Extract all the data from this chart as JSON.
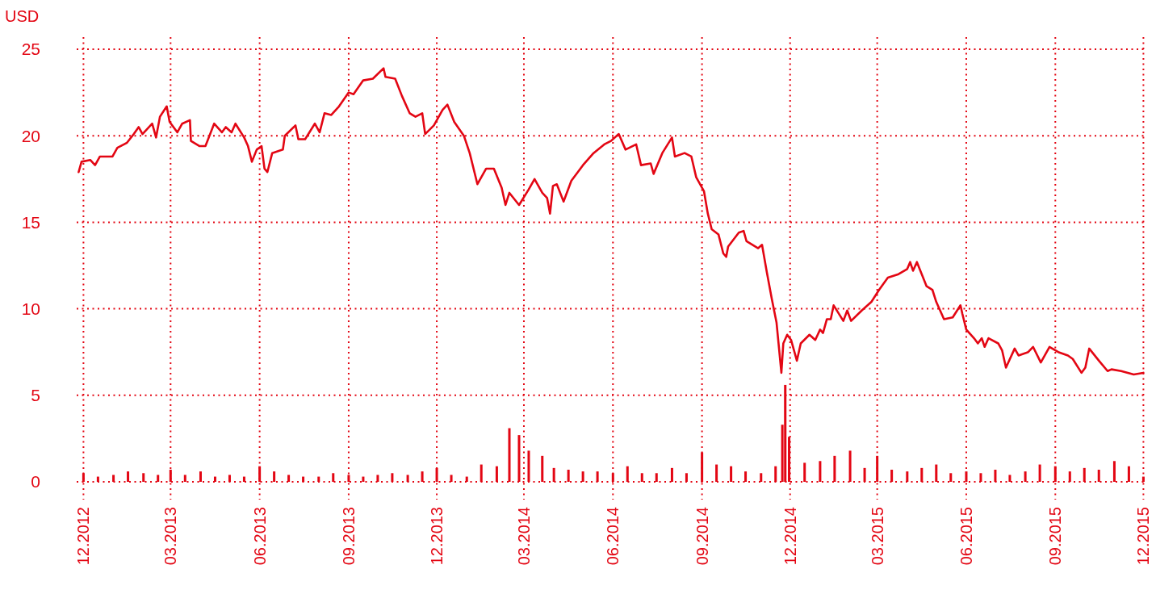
{
  "chart_data": {
    "type": "line",
    "ylabel": "USD",
    "xlim": [
      "2012-11-24",
      "2015-12-04"
    ],
    "ylim": [
      0,
      25.7
    ],
    "yticks": [
      0,
      5,
      10,
      15,
      20,
      25
    ],
    "xticks": [
      {
        "value": "2012-12",
        "label": "12.2012"
      },
      {
        "value": "2013-03",
        "label": "03.2013"
      },
      {
        "value": "2013-06",
        "label": "06.2013"
      },
      {
        "value": "2013-09",
        "label": "09.2013"
      },
      {
        "value": "2013-12",
        "label": "12.2013"
      },
      {
        "value": "2014-03",
        "label": "03.2014"
      },
      {
        "value": "2014-06",
        "label": "06.2014"
      },
      {
        "value": "2014-09",
        "label": "09.2014"
      },
      {
        "value": "2014-12",
        "label": "12.2014"
      },
      {
        "value": "2015-03",
        "label": "03.2015"
      },
      {
        "value": "2015-06",
        "label": "06.2015"
      },
      {
        "value": "2015-09",
        "label": "09.2015"
      },
      {
        "value": "2015-12",
        "label": "12.2015"
      }
    ],
    "grid": true,
    "series": [
      {
        "type": "bar",
        "color": "#e30613",
        "x": [
          "2012-12-01",
          "2012-12-16",
          "2013-01-01",
          "2013-01-16",
          "2013-02-01",
          "2013-02-16",
          "2013-03-01",
          "2013-03-16",
          "2013-04-01",
          "2013-04-16",
          "2013-05-01",
          "2013-05-16",
          "2013-06-01",
          "2013-06-16",
          "2013-07-01",
          "2013-07-16",
          "2013-08-01",
          "2013-08-16",
          "2013-09-01",
          "2013-09-16",
          "2013-10-01",
          "2013-10-16",
          "2013-11-01",
          "2013-11-16",
          "2013-12-01",
          "2013-12-16",
          "2014-01-01",
          "2014-01-16",
          "2014-02-01",
          "2014-02-14",
          "2014-02-24",
          "2014-03-06",
          "2014-03-20",
          "2014-04-01",
          "2014-04-16",
          "2014-05-01",
          "2014-05-16",
          "2014-06-01",
          "2014-06-16",
          "2014-07-01",
          "2014-07-16",
          "2014-08-01",
          "2014-08-16",
          "2014-09-01",
          "2014-09-16",
          "2014-10-01",
          "2014-10-16",
          "2014-11-01",
          "2014-11-16",
          "2014-11-23",
          "2014-11-26",
          "2014-11-30",
          "2014-12-16",
          "2015-01-01",
          "2015-01-16",
          "2015-02-01",
          "2015-02-16",
          "2015-03-01",
          "2015-03-16",
          "2015-04-01",
          "2015-04-16",
          "2015-05-01",
          "2015-05-16",
          "2015-06-01",
          "2015-06-16",
          "2015-07-01",
          "2015-07-16",
          "2015-08-01",
          "2015-08-16",
          "2015-09-01",
          "2015-09-16",
          "2015-10-01",
          "2015-10-16",
          "2015-11-01",
          "2015-11-16",
          "2015-12-01"
        ],
        "values": [
          0.5,
          0.3,
          0.4,
          0.6,
          0.5,
          0.4,
          0.7,
          0.4,
          0.6,
          0.3,
          0.4,
          0.3,
          0.9,
          0.6,
          0.4,
          0.3,
          0.3,
          0.5,
          0.4,
          0.3,
          0.4,
          0.5,
          0.4,
          0.6,
          0.8,
          0.4,
          0.3,
          1.0,
          0.9,
          3.1,
          2.7,
          1.8,
          1.5,
          0.8,
          0.7,
          0.6,
          0.6,
          0.5,
          0.9,
          0.5,
          0.5,
          0.8,
          0.5,
          1.7,
          1.0,
          0.9,
          0.6,
          0.5,
          0.9,
          3.3,
          5.6,
          2.6,
          1.1,
          1.2,
          1.5,
          1.8,
          0.8,
          1.5,
          0.7,
          0.6,
          0.8,
          1.0,
          0.5,
          0.6,
          0.5,
          0.7,
          0.4,
          0.6,
          1.0,
          0.9,
          0.6,
          0.8,
          0.7,
          1.2,
          0.9,
          0.3
        ]
      },
      {
        "color": "#e30613",
        "x": [
          "2012-11-26",
          "2012-11-29",
          "2012-12-08",
          "2012-12-13",
          "2012-12-18",
          "2012-12-31",
          "2013-01-05",
          "2013-01-15",
          "2013-01-22",
          "2013-01-27",
          "2013-01-31",
          "2013-02-10",
          "2013-02-14",
          "2013-02-18",
          "2013-02-25",
          "2013-02-28",
          "2013-03-08",
          "2013-03-13",
          "2013-03-21",
          "2013-03-22",
          "2013-03-31",
          "2013-04-06",
          "2013-04-15",
          "2013-04-23",
          "2013-04-27",
          "2013-05-03",
          "2013-05-07",
          "2013-05-16",
          "2013-05-20",
          "2013-05-24",
          "2013-05-29",
          "2013-06-03",
          "2013-06-06",
          "2013-06-09",
          "2013-06-14",
          "2013-06-25",
          "2013-06-27",
          "2013-07-08",
          "2013-07-11",
          "2013-07-18",
          "2013-07-28",
          "2013-08-02",
          "2013-08-07",
          "2013-08-14",
          "2013-08-22",
          "2013-09-01",
          "2013-09-06",
          "2013-09-16",
          "2013-09-26",
          "2013-10-07",
          "2013-10-09",
          "2013-10-19",
          "2013-10-26",
          "2013-11-03",
          "2013-11-09",
          "2013-11-16",
          "2013-11-19",
          "2013-11-28",
          "2013-12-07",
          "2013-12-12",
          "2013-12-19",
          "2013-12-29",
          "2014-01-04",
          "2014-01-12",
          "2014-01-21",
          "2014-01-29",
          "2014-02-06",
          "2014-02-10",
          "2014-02-14",
          "2014-02-24",
          "2014-03-06",
          "2014-03-12",
          "2014-03-20",
          "2014-03-25",
          "2014-03-28",
          "2014-03-31",
          "2014-04-04",
          "2014-04-11",
          "2014-04-19",
          "2014-05-01",
          "2014-05-12",
          "2014-05-23",
          "2014-05-30",
          "2014-06-07",
          "2014-06-14",
          "2014-06-25",
          "2014-06-30",
          "2014-07-10",
          "2014-07-13",
          "2014-07-22",
          "2014-08-01",
          "2014-08-04",
          "2014-08-14",
          "2014-08-21",
          "2014-08-26",
          "2014-09-03",
          "2014-09-07",
          "2014-09-11",
          "2014-09-18",
          "2014-09-23",
          "2014-09-26",
          "2014-09-28",
          "2014-10-09",
          "2014-10-14",
          "2014-10-17",
          "2014-10-29",
          "2014-11-02",
          "2014-11-07",
          "2014-11-12",
          "2014-11-17",
          "2014-11-22",
          "2014-11-24",
          "2014-11-28",
          "2014-12-02",
          "2014-12-08",
          "2014-12-12",
          "2014-12-21",
          "2014-12-27",
          "2015-01-01",
          "2015-01-04",
          "2015-01-08",
          "2015-01-12",
          "2015-01-15",
          "2015-01-25",
          "2015-01-29",
          "2015-02-02",
          "2015-02-13",
          "2015-02-23",
          "2015-03-03",
          "2015-03-12",
          "2015-03-23",
          "2015-04-01",
          "2015-04-04",
          "2015-04-07",
          "2015-04-11",
          "2015-04-16",
          "2015-04-21",
          "2015-04-27",
          "2015-05-01",
          "2015-05-05",
          "2015-05-09",
          "2015-05-18",
          "2015-05-26",
          "2015-05-28",
          "2015-06-01",
          "2015-06-09",
          "2015-06-13",
          "2015-06-17",
          "2015-06-20",
          "2015-06-24",
          "2015-07-04",
          "2015-07-08",
          "2015-07-12",
          "2015-07-21",
          "2015-07-25",
          "2015-08-04",
          "2015-08-09",
          "2015-08-17",
          "2015-08-26",
          "2015-09-04",
          "2015-09-14",
          "2015-09-19",
          "2015-09-28",
          "2015-10-02",
          "2015-10-06",
          "2015-10-16",
          "2015-10-25",
          "2015-10-29",
          "2015-11-08",
          "2015-11-21",
          "2015-12-01"
        ],
        "values": [
          17.9,
          18.5,
          18.6,
          18.3,
          18.8,
          18.8,
          19.3,
          19.6,
          20.1,
          20.5,
          20.1,
          20.7,
          19.9,
          21.1,
          21.7,
          20.8,
          20.2,
          20.7,
          20.9,
          19.7,
          19.4,
          19.4,
          20.7,
          20.2,
          20.5,
          20.2,
          20.7,
          19.9,
          19.4,
          18.5,
          19.2,
          19.4,
          18.1,
          17.9,
          19.0,
          19.2,
          20.0,
          20.6,
          19.8,
          19.8,
          20.7,
          20.2,
          21.3,
          21.2,
          21.7,
          22.5,
          22.4,
          23.2,
          23.3,
          23.9,
          23.4,
          23.3,
          22.3,
          21.3,
          21.1,
          21.3,
          20.1,
          20.6,
          21.5,
          21.8,
          20.8,
          20.0,
          19.0,
          17.2,
          18.1,
          18.1,
          17.0,
          16.0,
          16.7,
          16.0,
          16.9,
          17.5,
          16.7,
          16.4,
          15.5,
          17.1,
          17.2,
          16.2,
          17.4,
          18.3,
          19.0,
          19.5,
          19.7,
          20.1,
          19.2,
          19.5,
          18.3,
          18.4,
          17.8,
          19.0,
          19.9,
          18.8,
          19.0,
          18.8,
          17.6,
          16.8,
          15.5,
          14.6,
          14.3,
          13.2,
          13.0,
          13.6,
          14.4,
          14.5,
          13.9,
          13.5,
          13.7,
          12.1,
          10.6,
          9.2,
          6.3,
          8.0,
          8.5,
          8.2,
          7.0,
          8.0,
          8.5,
          8.2,
          8.8,
          8.6,
          9.4,
          9.4,
          10.2,
          9.3,
          9.9,
          9.3,
          9.9,
          10.4,
          11.1,
          11.8,
          12.0,
          12.3,
          12.7,
          12.2,
          12.7,
          12.0,
          11.3,
          11.1,
          10.4,
          9.9,
          9.4,
          9.5,
          10.2,
          9.7,
          8.8,
          8.3,
          8.0,
          8.3,
          7.8,
          8.3,
          8.0,
          7.6,
          6.6,
          7.7,
          7.3,
          7.5,
          7.8,
          6.9,
          7.8,
          7.5,
          7.3,
          7.1,
          6.3,
          6.6,
          7.7,
          7.0,
          6.4,
          6.5,
          6.4,
          6.2,
          6.3
        ]
      }
    ]
  }
}
